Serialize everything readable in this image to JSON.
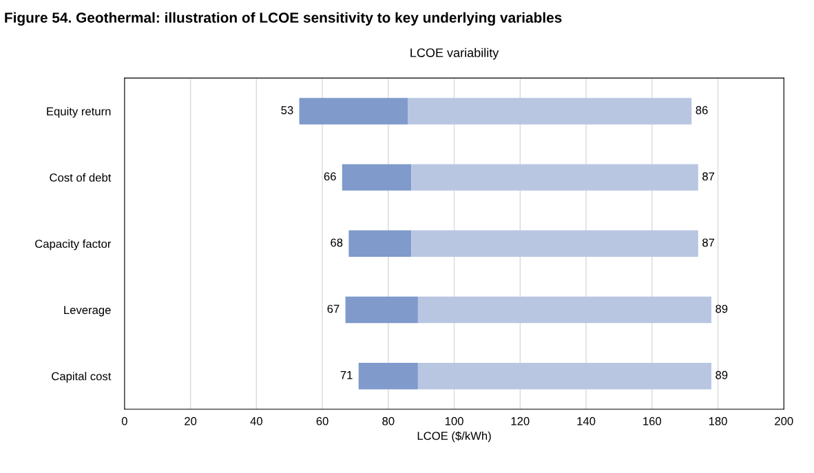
{
  "chart_data": {
    "type": "bar",
    "orientation": "horizontal",
    "title": "Figure 54. Geothermal: illustration of LCOE sensitivity to key underlying variables",
    "subtitle": "LCOE variability",
    "xlabel": "LCOE ($/kWh)",
    "categories": [
      "Equity return",
      "Cost of debt",
      "Capacity factor",
      "Leverage",
      "Capital cost"
    ],
    "series": [
      {
        "color": "#7f9acb",
        "base": [
          53,
          66,
          68,
          67,
          71
        ],
        "values": [
          33,
          21,
          19,
          22,
          18
        ]
      },
      {
        "color": "#b8c6e2",
        "base": [
          86,
          87,
          87,
          89,
          89
        ],
        "values": [
          86,
          87,
          87,
          89,
          89
        ],
        "value_labels": [
          "86",
          "87",
          "87",
          "89",
          "89"
        ]
      }
    ],
    "annotations": [
      {
        "text": "53",
        "x": 53,
        "y": "Equity return"
      },
      {
        "text": "66",
        "x": 66,
        "y": "Cost of debt"
      },
      {
        "text": "68",
        "x": 68,
        "y": "Capacity factor"
      },
      {
        "text": "67",
        "x": 67,
        "y": "Leverage"
      },
      {
        "text": "71",
        "x": 71,
        "y": "Capital cost"
      }
    ],
    "xlim": [
      0,
      200
    ],
    "xticks": [
      0,
      20,
      40,
      60,
      80,
      100,
      120,
      140,
      160,
      180,
      200
    ],
    "grid": "x",
    "legend": false
  }
}
